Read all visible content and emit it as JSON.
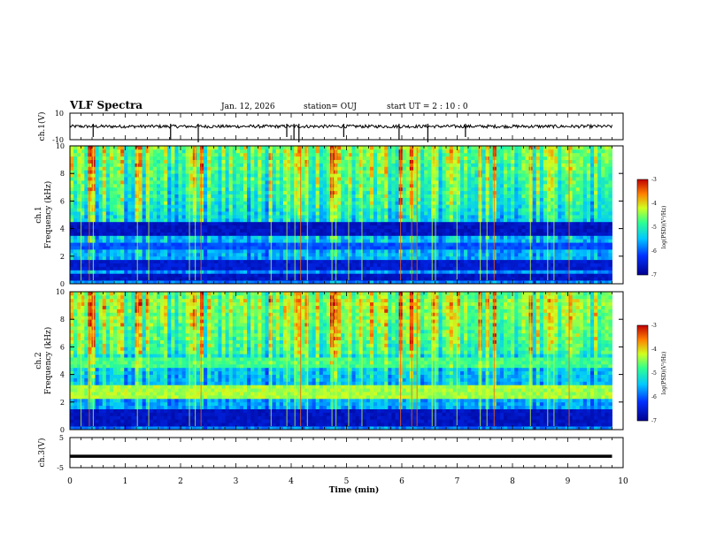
{
  "header": {
    "title": "VLF Spectra",
    "date": "Jan. 12, 2026",
    "station": "station= OUJ",
    "start_ut": "start  UT =   2 : 10 : 0"
  },
  "chart_data": [
    {
      "type": "line",
      "name": "ch1-waveform",
      "ylabel": "ch.1(V)",
      "ylim": [
        -10,
        10
      ],
      "yticks": [
        "10",
        "-10"
      ],
      "baseline": 0,
      "spikes_min": [
        0.42,
        1.82,
        2.32,
        3.92,
        4.05,
        4.14,
        4.95,
        5.95,
        6.47,
        7.15
      ]
    },
    {
      "type": "heatmap",
      "name": "ch1-spectrogram",
      "ylabel_channel": "ch.1",
      "ylabel": "Frequency  (kHz)",
      "ylim": [
        0,
        10
      ],
      "yticks": [
        "0",
        "2",
        "4",
        "6",
        "8",
        "10"
      ],
      "colorbar_label": "log(PSD)(V²/Hz)",
      "colorbar_ticks": [
        "-3",
        "-4",
        "-5",
        "-6",
        "-7"
      ],
      "zlim": [
        -7,
        -3
      ],
      "bands_khz": [
        [
          0.3,
          0.7,
          -6.8
        ],
        [
          1.0,
          1.8,
          -6.7
        ],
        [
          2.6,
          3.0,
          -6.2
        ],
        [
          3.6,
          4.6,
          -6.8
        ]
      ]
    },
    {
      "type": "heatmap",
      "name": "ch2-spectrogram",
      "ylabel_channel": "ch.2",
      "ylabel": "Frequency  (kHz)",
      "ylim": [
        0,
        10
      ],
      "yticks": [
        "0",
        "2",
        "4",
        "6",
        "8",
        "10"
      ],
      "colorbar_label": "log(PSD)(V²/Hz)",
      "colorbar_ticks": [
        "-3",
        "-4",
        "-5",
        "-6",
        "-7"
      ],
      "zlim": [
        -7,
        -3
      ],
      "bands_khz": [
        [
          2.2,
          3.3,
          -4.6
        ],
        [
          4.6,
          5.3,
          -5.0
        ],
        [
          0.3,
          1.5,
          -6.8
        ]
      ]
    },
    {
      "type": "line",
      "name": "ch3-waveform",
      "ylabel": "ch.3(V)",
      "ylim": [
        -5,
        5
      ],
      "yticks": [
        "5",
        "-5"
      ],
      "baseline": -1.2
    }
  ],
  "x_axis": {
    "label": "Time  (min)",
    "xlim": [
      0,
      10
    ],
    "ticks": [
      "0",
      "1",
      "2",
      "3",
      "4",
      "5",
      "6",
      "7",
      "8",
      "9",
      "10"
    ]
  }
}
